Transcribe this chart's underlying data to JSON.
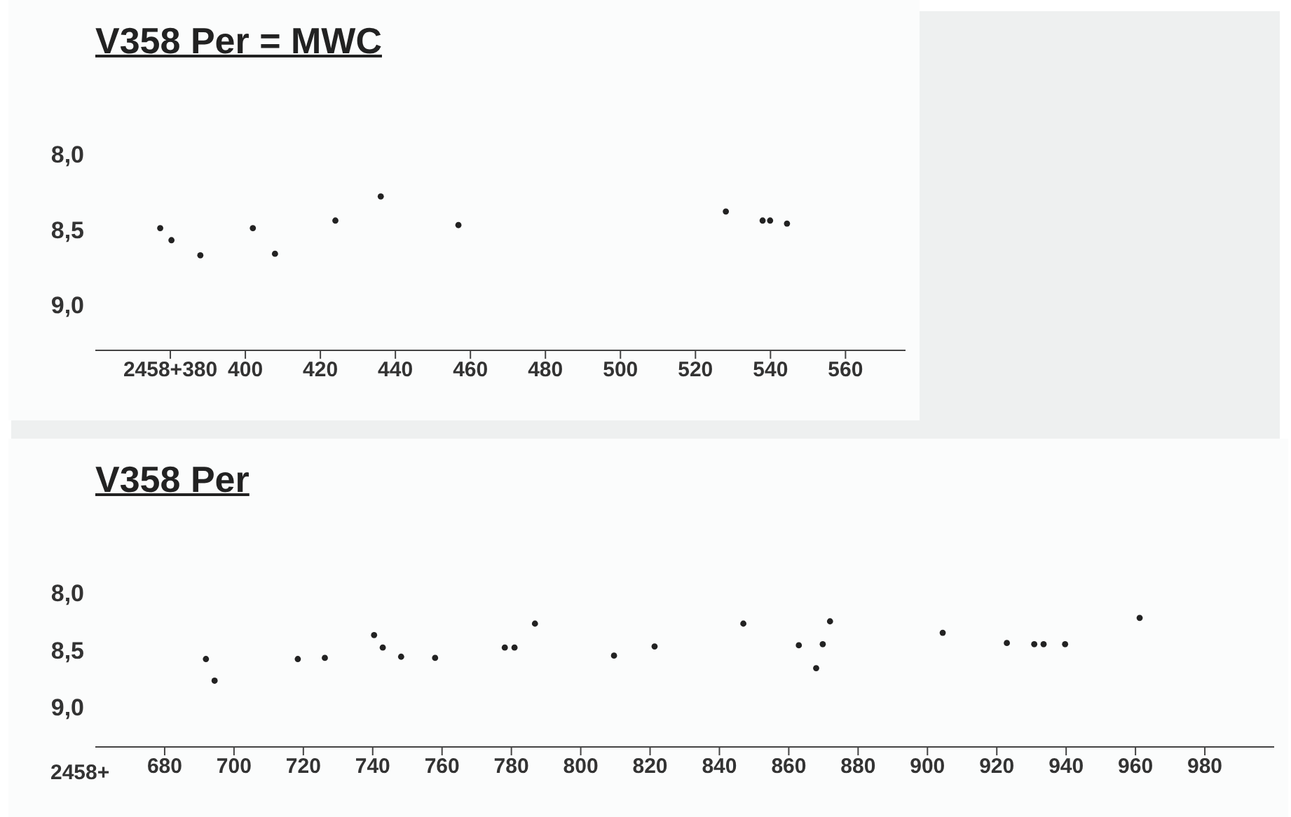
{
  "chart_data": [
    {
      "type": "scatter",
      "title": "V358 Per = MWC",
      "marker": "circle",
      "series": [
        {
          "color": "#222222",
          "x": [
            377.3,
            380.3,
            388,
            402,
            407.9,
            424,
            436.1,
            456.8,
            528.1,
            537.9,
            539.9,
            544.4
          ],
          "values": [
            8.49,
            8.57,
            8.67,
            8.49,
            8.66,
            8.44,
            8.28,
            8.47,
            8.38,
            8.44,
            8.44,
            8.46
          ]
        }
      ],
      "xlim": [
        360,
        576
      ],
      "xticks": [
        {
          "value": 380,
          "label": "2458+380"
        },
        400,
        420,
        440,
        460,
        480,
        500,
        520,
        540,
        560
      ],
      "ylim": [
        9.3,
        8
      ],
      "yticks": [
        {
          "value": 8,
          "label": "8,0"
        },
        {
          "value": 8.5,
          "label": "8,5"
        },
        {
          "value": 9,
          "label": "9,0"
        }
      ]
    },
    {
      "type": "scatter",
      "title": "V358 Per",
      "xlabel": "2458+",
      "marker": "circle",
      "series": [
        {
          "color": "#222222",
          "x": [
            691.9,
            694.4,
            718.4,
            726.2,
            740.4,
            742.9,
            748.2,
            758,
            778.1,
            780.9,
            786.8,
            809.6,
            821.3,
            846.9,
            862.9,
            867.9,
            869.8,
            871.9,
            904.4,
            922.9,
            930.8,
            933.5,
            939.7,
            961.2
          ],
          "values": [
            8.58,
            8.77,
            8.58,
            8.57,
            8.37,
            8.48,
            8.56,
            8.57,
            8.48,
            8.48,
            8.27,
            8.55,
            8.47,
            8.27,
            8.46,
            8.66,
            8.45,
            8.25,
            8.35,
            8.44,
            8.45,
            8.45,
            8.45,
            8.22
          ]
        }
      ],
      "xlim": [
        660,
        1000
      ],
      "xticks": [
        680,
        700,
        720,
        740,
        760,
        780,
        800,
        820,
        840,
        860,
        880,
        900,
        920,
        940,
        960,
        980
      ],
      "ylim": [
        9.35,
        8
      ],
      "yticks": [
        {
          "value": 8,
          "label": "8,0"
        },
        {
          "value": 8.5,
          "label": "8,5"
        },
        {
          "value": 9,
          "label": "9,0"
        }
      ]
    }
  ]
}
